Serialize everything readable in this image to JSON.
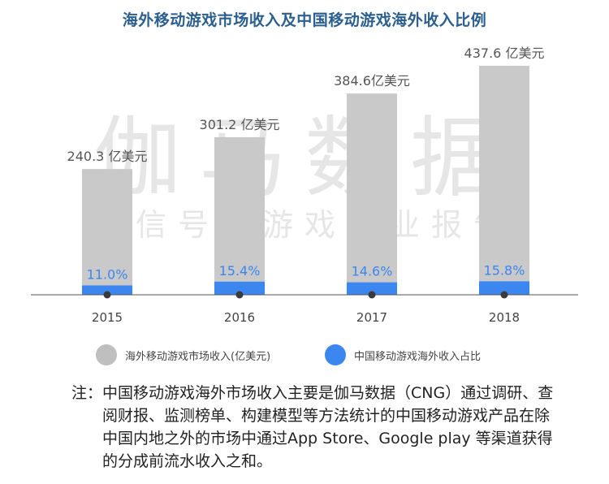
{
  "title": "海外移动游戏市场收入及中国移动游戏海外收入比例",
  "watermark": {
    "line1": "伽马数据",
    "line2": "微信号：游戏产业报告"
  },
  "legend": {
    "item1": {
      "label": "海外移动游戏市场收入(亿美元)",
      "color": "#bfbfbf"
    },
    "item2": {
      "label": "中国移动游戏海外收入占比",
      "color": "#3c86f0"
    }
  },
  "note": {
    "label": "注：",
    "text": "中国移动游戏海外市场收入主要是伽马数据（CNG）通过调研、查阅财报、监测榜单、构建模型等方法统计的中国移动游戏产品在除中国内地之外的市场中通过App Store、Google play 等渠道获得的分成前流水收入之和。"
  },
  "chart_data": {
    "type": "bar",
    "categories": [
      "2015",
      "2016",
      "2017",
      "2018"
    ],
    "series": [
      {
        "name": "海外移动游戏市场收入(亿美元)",
        "values": [
          240.3,
          301.2,
          384.6,
          437.6
        ],
        "labels": [
          "240.3 亿美元",
          "301.2 亿美元",
          "384.6亿美元",
          "437.6 亿美元"
        ],
        "color": "#c9c9c9"
      },
      {
        "name": "中国移动游戏海外收入占比",
        "values": [
          11.0,
          15.4,
          14.6,
          15.8
        ],
        "labels": [
          "11.0%",
          "15.4%",
          "14.6%",
          "15.8%"
        ],
        "color": "#3c86f0"
      }
    ],
    "value_label_color": "#555555",
    "percent_label_color": "#3c86f0",
    "axis_color": "#555555",
    "grid": false,
    "legend_position": "bottom"
  }
}
